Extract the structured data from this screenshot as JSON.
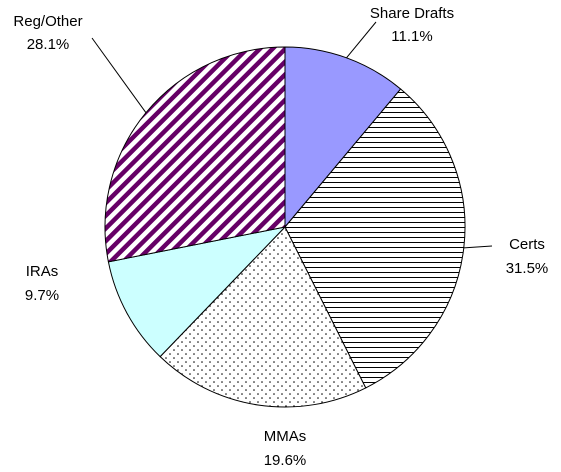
{
  "chart_data": {
    "type": "pie",
    "categories": [
      "Share Drafts",
      "Certs",
      "MMAs",
      "IRAs",
      "Reg/Other"
    ],
    "values": [
      11.1,
      31.5,
      19.6,
      9.7,
      28.1
    ],
    "value_labels": [
      "11.1%",
      "31.5%",
      "19.6%",
      "9.7%",
      "28.1%"
    ],
    "colors": [
      "#9999ff",
      "#000000",
      "#000000",
      "#ccffff",
      "#660066"
    ],
    "patterns": [
      "solid",
      "horizontal",
      "dots",
      "solid",
      "diagonal"
    ]
  }
}
